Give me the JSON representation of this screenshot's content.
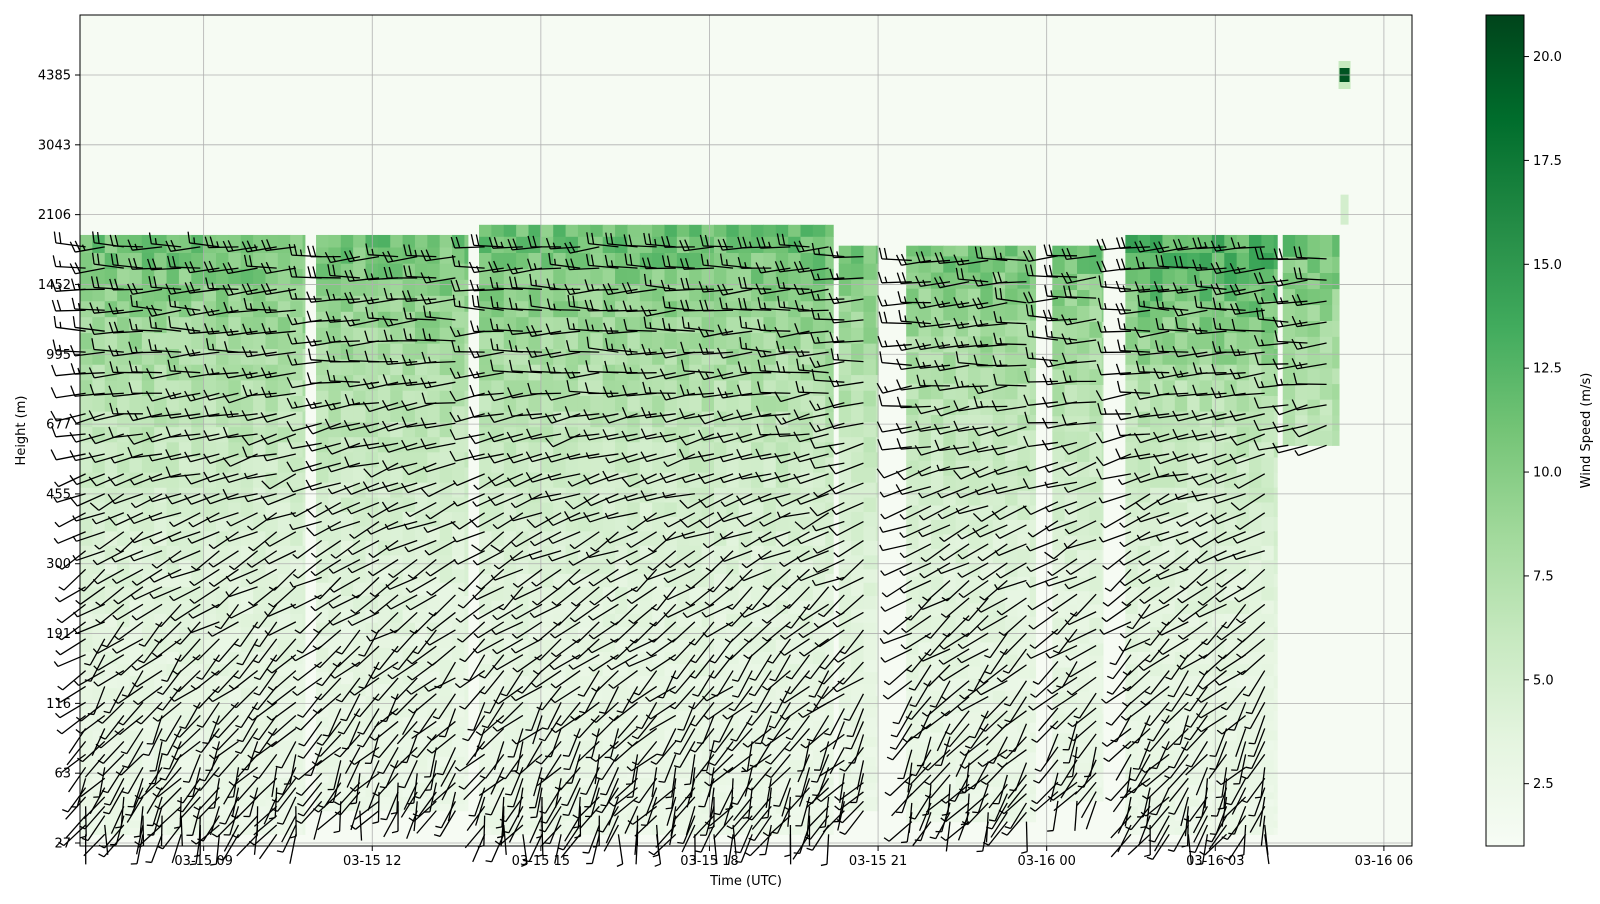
{
  "chart_data": {
    "type": "heatmap",
    "subtype": "wind-profile-barbs",
    "title": "",
    "xlabel": "Time (UTC)",
    "ylabel": "Height (m)",
    "x_ticks": [
      "03-15 09",
      "03-15 12",
      "03-15 15",
      "03-15 18",
      "03-15 21",
      "03-16 00",
      "03-16 03",
      "03-16 06"
    ],
    "x_range_hours": [
      6.8,
      30.5
    ],
    "y_ticks": [
      "27",
      "63",
      "116",
      "191",
      "300",
      "455",
      "677",
      "995",
      "1452",
      "2106",
      "3043",
      "4385"
    ],
    "y_levels_m": [
      27,
      63,
      116,
      191,
      300,
      455,
      677,
      995,
      1452,
      2106,
      3043,
      4385
    ],
    "grid": true,
    "colormap": "Greens",
    "colors": {
      "low": "#f7fcf5",
      "mid": "#74c476",
      "high": "#00441b",
      "barb": "#000000",
      "grid": "#b0b0b0"
    },
    "colorbar": {
      "label": "Wind Speed (m/s)",
      "range": [
        1.0,
        21.0
      ],
      "ticks": [
        "2.5",
        "5.0",
        "7.5",
        "10.0",
        "12.5",
        "15.0",
        "17.5",
        "20.0"
      ],
      "tick_values": [
        2.5,
        5.0,
        7.5,
        10.0,
        12.5,
        15.0,
        17.5,
        20.0
      ]
    },
    "data_segments": [
      {
        "start_h": 6.8,
        "end_h": 10.8,
        "top_m": 1800,
        "bottom_m": 30
      },
      {
        "start_h": 11.0,
        "end_h": 13.7,
        "top_m": 1800,
        "bottom_m": 40
      },
      {
        "start_h": 13.9,
        "end_h": 20.2,
        "top_m": 1900,
        "bottom_m": 30
      },
      {
        "start_h": 20.3,
        "end_h": 21.0,
        "top_m": 1700,
        "bottom_m": 40
      },
      {
        "start_h": 21.5,
        "end_h": 23.8,
        "top_m": 1700,
        "bottom_m": 35
      },
      {
        "start_h": 24.1,
        "end_h": 25.0,
        "top_m": 1700,
        "bottom_m": 45
      },
      {
        "start_h": 25.4,
        "end_h": 28.1,
        "top_m": 1800,
        "bottom_m": 30
      },
      {
        "start_h": 28.2,
        "end_h": 29.2,
        "top_m": 1800,
        "bottom_m": 600
      }
    ],
    "speed_profile": {
      "note_levels_m": [
        30,
        100,
        200,
        300,
        455,
        677,
        995,
        1452,
        1800
      ],
      "typical_mps": [
        2.5,
        3.0,
        3.5,
        4.0,
        5.0,
        6.5,
        8.0,
        10.0,
        11.0
      ]
    },
    "max_speed_point": {
      "time_h": 29.3,
      "height_m": 4385,
      "speed_mps": 20.0
    }
  }
}
